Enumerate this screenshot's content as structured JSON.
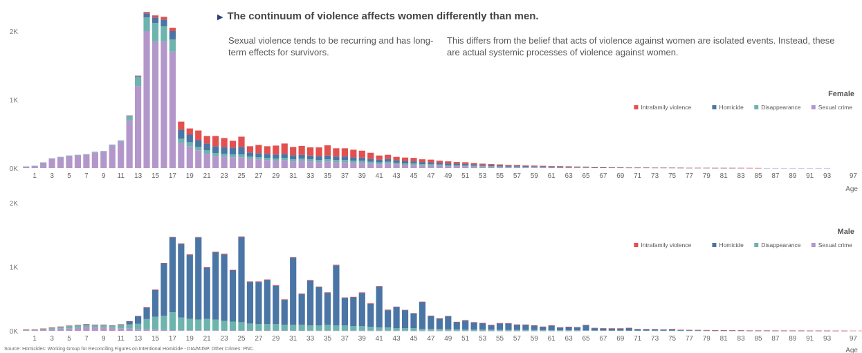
{
  "headline": "The continuum of violence affects women differently than men.",
  "paragraph_left": "Sexual violence tends to be recurring and has long-term effects for survivors.",
  "paragraph_right": "This differs from the belief that acts of violence against women are isolated events. Instead, these are actual systemic processes of violence against women.",
  "source": "Source: Homicides: Working Group for Reconciling Figures on Intentional Homicide - DIA/MJSP. Other Crimes: PNC.",
  "colors": {
    "Intrafamily violence": "#e2504f",
    "Homicide": "#4a75a5",
    "Disappearance": "#6cb4ad",
    "Sexual crime": "#b397cb"
  },
  "chart_data": [
    {
      "type": "bar",
      "stacked": true,
      "title": "Female",
      "xlabel": "Age",
      "ylabel": "",
      "ylim": [
        0,
        2000
      ],
      "y_ticks": [
        "0K",
        "1K",
        "2K"
      ],
      "x_ticks": [
        "1",
        "3",
        "5",
        "7",
        "9",
        "11",
        "13",
        "15",
        "17",
        "19",
        "21",
        "23",
        "25",
        "27",
        "29",
        "31",
        "33",
        "35",
        "37",
        "39",
        "41",
        "43",
        "45",
        "47",
        "49",
        "51",
        "53",
        "55",
        "57",
        "59",
        "61",
        "63",
        "65",
        "67",
        "69",
        "71",
        "73",
        "75",
        "77",
        "79",
        "81",
        "83",
        "85",
        "87",
        "89",
        "91",
        "93",
        "97"
      ],
      "legend_position": "top-right",
      "x": [
        0,
        1,
        2,
        3,
        4,
        5,
        6,
        7,
        8,
        9,
        10,
        11,
        12,
        13,
        14,
        15,
        16,
        17,
        18,
        19,
        20,
        21,
        22,
        23,
        24,
        25,
        26,
        27,
        28,
        29,
        30,
        31,
        32,
        33,
        34,
        35,
        36,
        37,
        38,
        39,
        40,
        41,
        42,
        43,
        44,
        45,
        46,
        47,
        48,
        49,
        50,
        51,
        52,
        53,
        54,
        55,
        56,
        57,
        58,
        59,
        60,
        61,
        62,
        63,
        64,
        65,
        66,
        67,
        68,
        69,
        70,
        71,
        72,
        73,
        74,
        75,
        76,
        77,
        78,
        79,
        80,
        81,
        82,
        83,
        84,
        85,
        86,
        87,
        88,
        89,
        90,
        91,
        92,
        93,
        94,
        95,
        96,
        97
      ],
      "series": [
        {
          "name": "Sexual crime",
          "values": [
            20,
            30,
            80,
            140,
            160,
            180,
            190,
            200,
            230,
            240,
            330,
            390,
            700,
            1200,
            2000,
            1850,
            1850,
            1700,
            370,
            320,
            260,
            210,
            180,
            170,
            160,
            160,
            140,
            130,
            120,
            110,
            120,
            100,
            110,
            100,
            90,
            100,
            90,
            90,
            80,
            80,
            70,
            60,
            70,
            60,
            50,
            50,
            40,
            40,
            40,
            30,
            30,
            30,
            25,
            22,
            20,
            18,
            16,
            15,
            14,
            12,
            12,
            10,
            10,
            9,
            8,
            8,
            7,
            7,
            6,
            6,
            5,
            5,
            5,
            4,
            4,
            4,
            3,
            3,
            3,
            3,
            2,
            2,
            2,
            2,
            2,
            1,
            1,
            1,
            1,
            1,
            1,
            1,
            1,
            1,
            0,
            0,
            0,
            0
          ]
        },
        {
          "name": "Disappearance",
          "values": [
            5,
            5,
            5,
            5,
            5,
            5,
            5,
            5,
            10,
            10,
            15,
            15,
            60,
            130,
            200,
            270,
            220,
            180,
            60,
            60,
            50,
            50,
            40,
            40,
            40,
            40,
            30,
            30,
            30,
            30,
            30,
            30,
            30,
            30,
            30,
            30,
            30,
            30,
            30,
            30,
            25,
            25,
            25,
            20,
            20,
            20,
            20,
            20,
            15,
            15,
            15,
            12,
            12,
            10,
            10,
            8,
            8,
            8,
            6,
            6,
            5,
            5,
            5,
            4,
            4,
            4,
            3,
            3,
            3,
            3,
            2,
            2,
            2,
            2,
            2,
            1,
            1,
            1,
            1,
            1,
            1,
            1,
            1,
            1,
            0,
            0,
            0,
            0,
            0,
            0,
            0,
            0,
            0,
            0,
            0,
            0,
            0,
            0
          ]
        },
        {
          "name": "Homicide",
          "values": [
            0,
            0,
            0,
            0,
            0,
            0,
            0,
            0,
            0,
            0,
            0,
            0,
            5,
            10,
            60,
            80,
            100,
            120,
            130,
            110,
            100,
            100,
            100,
            100,
            100,
            110,
            60,
            60,
            60,
            60,
            60,
            60,
            55,
            55,
            55,
            55,
            50,
            50,
            50,
            45,
            40,
            40,
            40,
            35,
            35,
            30,
            30,
            25,
            25,
            25,
            20,
            20,
            18,
            16,
            15,
            14,
            12,
            12,
            10,
            10,
            9,
            8,
            8,
            7,
            6,
            6,
            5,
            5,
            4,
            4,
            3,
            3,
            3,
            2,
            2,
            2,
            2,
            1,
            1,
            1,
            1,
            1,
            1,
            0,
            0,
            0,
            0,
            0,
            0,
            0,
            0,
            0,
            0,
            0,
            0,
            0,
            0,
            0
          ]
        },
        {
          "name": "Intrafamily violence",
          "values": [
            0,
            0,
            0,
            0,
            0,
            0,
            0,
            0,
            0,
            0,
            0,
            0,
            5,
            10,
            20,
            30,
            40,
            50,
            120,
            90,
            140,
            110,
            150,
            130,
            100,
            150,
            90,
            120,
            110,
            130,
            150,
            120,
            130,
            120,
            130,
            150,
            120,
            120,
            110,
            100,
            90,
            60,
            60,
            50,
            50,
            50,
            40,
            40,
            30,
            30,
            25,
            25,
            20,
            18,
            15,
            15,
            12,
            12,
            10,
            10,
            9,
            8,
            7,
            7,
            6,
            5,
            5,
            5,
            4,
            4,
            3,
            3,
            3,
            2,
            2,
            2,
            2,
            1,
            1,
            1,
            1,
            1,
            1,
            1,
            1,
            1,
            0,
            0,
            0,
            0,
            0,
            0,
            0,
            0,
            0,
            0,
            0,
            0
          ]
        }
      ]
    },
    {
      "type": "bar",
      "stacked": true,
      "title": "Male",
      "xlabel": "Age",
      "ylabel": "",
      "ylim": [
        0,
        2000
      ],
      "y_ticks": [
        "0K",
        "1K",
        "2K"
      ],
      "x_ticks": [
        "1",
        "3",
        "5",
        "7",
        "9",
        "11",
        "13",
        "15",
        "17",
        "19",
        "21",
        "23",
        "25",
        "27",
        "29",
        "31",
        "33",
        "35",
        "37",
        "39",
        "41",
        "43",
        "45",
        "47",
        "49",
        "51",
        "53",
        "55",
        "57",
        "59",
        "61",
        "63",
        "65",
        "67",
        "69",
        "71",
        "73",
        "75",
        "77",
        "79",
        "81",
        "83",
        "85",
        "87",
        "89",
        "91",
        "93",
        "97"
      ],
      "legend_position": "top-right",
      "x": [
        0,
        1,
        2,
        3,
        4,
        5,
        6,
        7,
        8,
        9,
        10,
        11,
        12,
        13,
        14,
        15,
        16,
        17,
        18,
        19,
        20,
        21,
        22,
        23,
        24,
        25,
        26,
        27,
        28,
        29,
        30,
        31,
        32,
        33,
        34,
        35,
        36,
        37,
        38,
        39,
        40,
        41,
        42,
        43,
        44,
        45,
        46,
        47,
        48,
        49,
        50,
        51,
        52,
        53,
        54,
        55,
        56,
        57,
        58,
        59,
        60,
        61,
        62,
        63,
        64,
        65,
        66,
        67,
        68,
        69,
        70,
        71,
        72,
        73,
        74,
        75,
        76,
        77,
        78,
        79,
        80,
        81,
        82,
        83,
        84,
        85,
        86,
        87,
        88,
        89,
        90,
        91,
        92,
        93,
        94,
        95,
        96,
        97
      ],
      "series": [
        {
          "name": "Sexual crime",
          "values": [
            10,
            10,
            15,
            25,
            35,
            40,
            50,
            60,
            55,
            55,
            45,
            40,
            40,
            30,
            25,
            20,
            15,
            10,
            8,
            8,
            8,
            8,
            8,
            6,
            6,
            6,
            5,
            5,
            5,
            5,
            5,
            5,
            5,
            4,
            4,
            4,
            4,
            4,
            4,
            3,
            3,
            3,
            3,
            3,
            3,
            2,
            2,
            2,
            2,
            2,
            2,
            2,
            1,
            1,
            1,
            1,
            1,
            1,
            1,
            1,
            1,
            1,
            1,
            1,
            1,
            0,
            0,
            0,
            0,
            0,
            0,
            0,
            0,
            0,
            0,
            0,
            0,
            0,
            0,
            0,
            0,
            0,
            0,
            0,
            0,
            0,
            0,
            0,
            0,
            0,
            0,
            0,
            0,
            0,
            0,
            0,
            0,
            0
          ]
        },
        {
          "name": "Disappearance",
          "values": [
            10,
            10,
            20,
            25,
            30,
            40,
            40,
            45,
            40,
            40,
            40,
            50,
            60,
            80,
            160,
            200,
            220,
            280,
            200,
            180,
            170,
            180,
            170,
            150,
            140,
            130,
            110,
            100,
            100,
            100,
            90,
            90,
            90,
            80,
            80,
            90,
            80,
            80,
            70,
            70,
            60,
            50,
            50,
            40,
            40,
            40,
            30,
            30,
            30,
            25,
            25,
            20,
            20,
            18,
            18,
            16,
            15,
            14,
            13,
            12,
            11,
            10,
            10,
            9,
            8,
            8,
            7,
            7,
            6,
            6,
            5,
            5,
            5,
            4,
            4,
            4,
            3,
            3,
            3,
            3,
            2,
            2,
            2,
            2,
            1,
            1,
            1,
            1,
            1,
            1,
            1,
            1,
            1,
            1,
            0,
            0,
            0,
            0
          ]
        },
        {
          "name": "Homicide",
          "values": [
            0,
            0,
            0,
            0,
            0,
            0,
            0,
            0,
            0,
            0,
            0,
            10,
            50,
            120,
            180,
            420,
            820,
            1170,
            1150,
            1000,
            1280,
            800,
            1050,
            1040,
            800,
            1330,
            650,
            660,
            690,
            600,
            390,
            1050,
            480,
            700,
            600,
            500,
            940,
            430,
            450,
            520,
            360,
            640,
            270,
            330,
            280,
            230,
            420,
            200,
            160,
            200,
            110,
            140,
            110,
            100,
            70,
            100,
            100,
            80,
            80,
            70,
            50,
            70,
            40,
            50,
            45,
            80,
            35,
            30,
            30,
            30,
            38,
            20,
            18,
            18,
            14,
            22,
            12,
            10,
            9,
            7,
            6,
            5,
            4,
            4,
            3,
            3,
            3,
            2,
            2,
            2,
            2,
            1,
            1,
            1,
            1,
            1,
            0,
            0
          ]
        },
        {
          "name": "Intrafamily violence",
          "values": [
            2,
            2,
            2,
            3,
            3,
            3,
            3,
            3,
            3,
            3,
            3,
            3,
            3,
            3,
            3,
            5,
            5,
            8,
            8,
            8,
            8,
            8,
            8,
            8,
            8,
            8,
            8,
            8,
            8,
            8,
            8,
            8,
            8,
            8,
            8,
            8,
            8,
            8,
            8,
            8,
            8,
            8,
            8,
            5,
            5,
            5,
            5,
            5,
            5,
            5,
            5,
            5,
            5,
            5,
            5,
            5,
            5,
            5,
            5,
            5,
            5,
            5,
            5,
            5,
            5,
            5,
            5,
            5,
            5,
            5,
            5,
            5,
            5,
            5,
            5,
            3,
            3,
            3,
            3,
            3,
            3,
            3,
            3,
            3,
            3,
            3,
            3,
            3,
            3,
            3,
            3,
            3,
            3,
            3,
            3,
            3,
            3,
            3
          ]
        }
      ]
    }
  ]
}
